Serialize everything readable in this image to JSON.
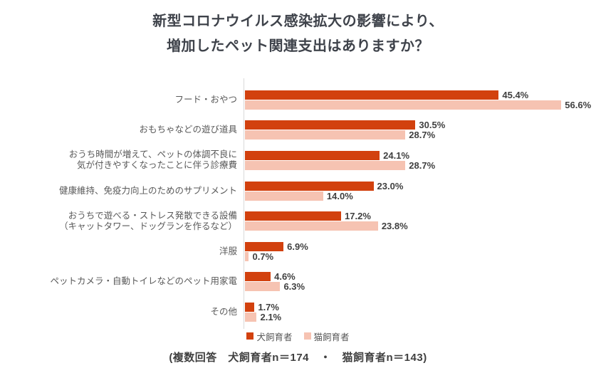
{
  "title": {
    "line1": "新型コロナウイルス感染拡大の影響により、",
    "line2": "増加したペット関連支出はありますか？"
  },
  "legend": {
    "dog_label": "犬飼育者",
    "cat_label": "猫飼育者"
  },
  "footnote": "(複数回答　犬飼育者n＝174　・　猫飼育者n＝143)",
  "colors": {
    "dog_bar": "#d2410e",
    "cat_bar": "#f6c3b2",
    "axis": "#d9d9d9",
    "title_text": "#3f434b",
    "category_text": "#595959",
    "value_text": "#404040"
  },
  "chart_data": {
    "type": "bar",
    "orientation": "horizontal",
    "title": "新型コロナウイルス感染拡大の影響により、増加したペット関連支出はありますか？",
    "value_suffix": "%",
    "xlim": [
      0,
      60
    ],
    "grid": false,
    "legend_position": "bottom",
    "note": "(複数回答　犬飼育者n＝174　・　猫飼育者n＝143)",
    "categories": [
      [
        "フード・おやつ"
      ],
      [
        "おもちゃなどの遊び道具"
      ],
      [
        "おうち時間が増えて、ペットの体調不良に",
        "気が付きやすくなったことに伴う診療費"
      ],
      [
        "健康維持、免疫力向上のためのサプリメント"
      ],
      [
        "おうちで遊べる・ストレス発散できる設備",
        "（キャットタワー、ドッグランを作るなど）"
      ],
      [
        "洋服"
      ],
      [
        "ペットカメラ・自動トイレなどのペット用家電"
      ],
      [
        "その他"
      ]
    ],
    "series": [
      {
        "name": "犬飼育者",
        "n": 174,
        "color": "#d2410e",
        "values": [
          45.4,
          30.5,
          24.1,
          23.0,
          17.2,
          6.9,
          4.6,
          1.7
        ]
      },
      {
        "name": "猫飼育者",
        "n": 143,
        "color": "#f6c3b2",
        "values": [
          56.6,
          28.7,
          28.7,
          14.0,
          23.8,
          0.7,
          6.3,
          2.1
        ]
      }
    ]
  }
}
